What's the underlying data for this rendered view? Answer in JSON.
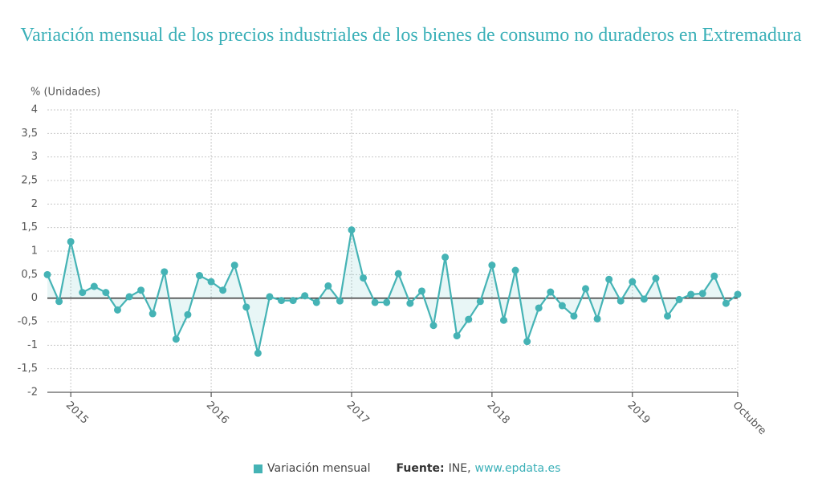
{
  "chart_data": {
    "type": "line",
    "title": "Variación mensual de los precios industriales de los bienes de consumo no duraderos en Extremadura",
    "y_label": "% (Unidades)",
    "categories": [
      null,
      null,
      "2015",
      null,
      null,
      null,
      null,
      null,
      null,
      null,
      null,
      null,
      null,
      null,
      "2016",
      null,
      null,
      null,
      null,
      null,
      null,
      null,
      null,
      null,
      null,
      null,
      "2017",
      null,
      null,
      null,
      null,
      null,
      null,
      null,
      null,
      null,
      null,
      null,
      "2018",
      null,
      null,
      null,
      null,
      null,
      null,
      null,
      null,
      null,
      null,
      null,
      "2019",
      null,
      null,
      null,
      null,
      null,
      null,
      null,
      null,
      "Octubre"
    ],
    "series": [
      {
        "name": "Variación mensual",
        "color": "#45b3b5",
        "values": [
          0.5,
          -0.07,
          1.2,
          0.12,
          0.25,
          0.12,
          -0.25,
          0.03,
          0.17,
          -0.33,
          0.56,
          -0.87,
          -0.35,
          0.48,
          0.35,
          0.17,
          0.7,
          -0.19,
          -1.17,
          0.03,
          -0.05,
          -0.05,
          0.05,
          -0.09,
          0.26,
          -0.06,
          1.45,
          0.43,
          -0.09,
          -0.09,
          0.52,
          -0.11,
          0.15,
          -0.58,
          0.87,
          -0.8,
          -0.45,
          -0.07,
          0.7,
          -0.47,
          0.59,
          -0.92,
          -0.21,
          0.13,
          -0.16,
          -0.38,
          0.2,
          -0.44,
          0.4,
          -0.06,
          0.35,
          -0.02,
          0.42,
          -0.38,
          -0.03,
          0.08,
          0.1,
          0.47,
          -0.11,
          0.08
        ]
      }
    ],
    "ylim": [
      -2,
      4
    ],
    "yticks": [
      4,
      {
        "value": 3.5,
        "label": "3,5"
      },
      3,
      {
        "value": 2.5,
        "label": "2,5"
      },
      2,
      {
        "value": 1.5,
        "label": "1,5"
      },
      1,
      {
        "value": 0.5,
        "label": "0,5"
      },
      0,
      {
        "value": -0.5,
        "label": "-0,5"
      },
      -1,
      {
        "value": -1.5,
        "label": "-1,5"
      },
      -2
    ],
    "grid": true,
    "area": true
  },
  "source": {
    "label": "Fuente:",
    "name": "INE,",
    "url": "www.epdata.es"
  }
}
